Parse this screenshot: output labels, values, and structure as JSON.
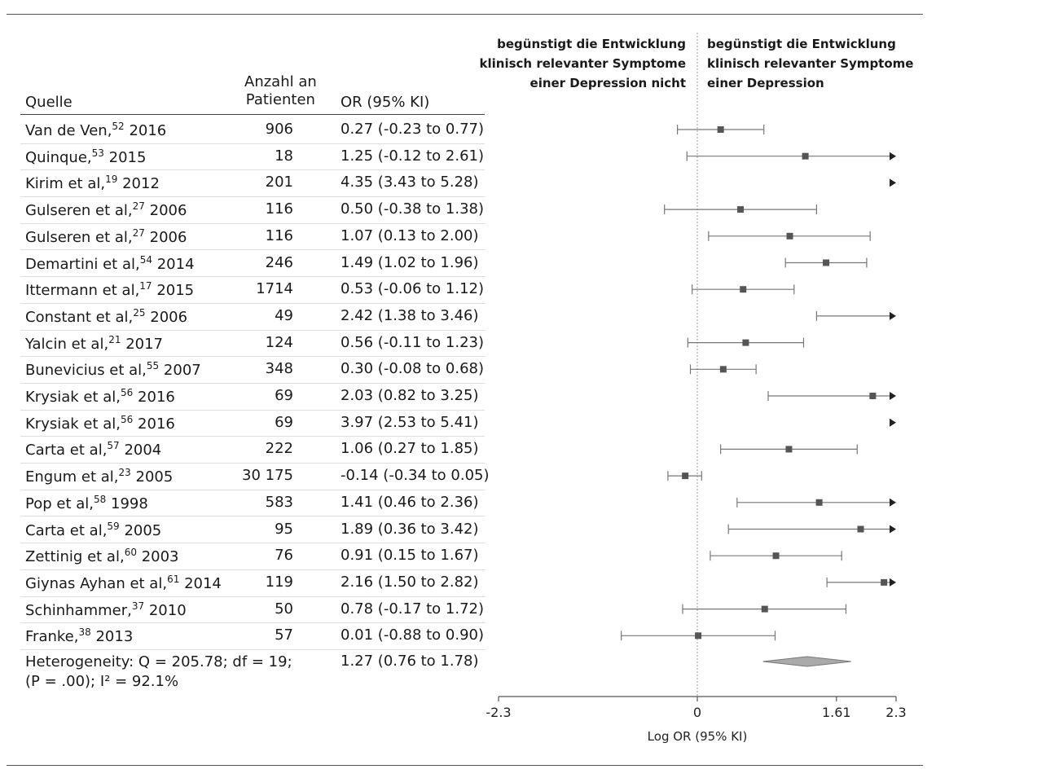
{
  "table_headers": {
    "source": "Quelle",
    "patients_line1": "Anzahl an",
    "patients_line2": "Patienten",
    "or": "OR (95% KI)"
  },
  "direction_labels": {
    "left_line1": "begünstigt die Entwicklung",
    "left_line2": "klinisch relevanter Symptome",
    "left_line3": "einer Depression nicht",
    "right_line1": "begünstigt die Entwicklung",
    "right_line2": "klinisch relevanter Symptome",
    "right_line3": "einer Depression"
  },
  "rows": [
    {
      "name": "Van de Ven,",
      "ref": "52",
      "year": "2016",
      "n": "906",
      "or_text": "0.27 (-0.23 to 0.77)"
    },
    {
      "name": "Quinque,",
      "ref": "53",
      "year": "2015",
      "n": "18",
      "or_text": "1.25 (-0.12 to 2.61)"
    },
    {
      "name": "Kirim et al,",
      "ref": "19",
      "year": "2012",
      "n": "201",
      "or_text": "4.35 (3.43 to 5.28)"
    },
    {
      "name": "Gulseren et al,",
      "ref": "27",
      "year": "2006",
      "n": "116",
      "or_text": "0.50 (-0.38 to 1.38)"
    },
    {
      "name": "Gulseren et al,",
      "ref": "27",
      "year": "2006",
      "n": "116",
      "or_text": "1.07 (0.13 to 2.00)"
    },
    {
      "name": "Demartini et al,",
      "ref": "54",
      "year": "2014",
      "n": "246",
      "or_text": "1.49 (1.02 to 1.96)"
    },
    {
      "name": "Ittermann et al,",
      "ref": "17",
      "year": "2015",
      "n": "1714",
      "or_text": "0.53 (-0.06 to 1.12)"
    },
    {
      "name": "Constant et al,",
      "ref": "25",
      "year": "2006",
      "n": "49",
      "or_text": "2.42 (1.38 to 3.46)"
    },
    {
      "name": "Yalcin et al,",
      "ref": "21",
      "year": "2017",
      "n": "124",
      "or_text": "0.56 (-0.11 to 1.23)"
    },
    {
      "name": "Bunevicius et al,",
      "ref": "55",
      "year": "2007",
      "n": "348",
      "or_text": "0.30 (-0.08 to 0.68)"
    },
    {
      "name": "Krysiak et al,",
      "ref": "56",
      "year": "2016",
      "n": "69",
      "or_text": "2.03 (0.82 to 3.25)"
    },
    {
      "name": "Krysiak et al,",
      "ref": "56",
      "year": "2016",
      "n": "69",
      "or_text": "3.97 (2.53 to 5.41)"
    },
    {
      "name": "Carta et al,",
      "ref": "57",
      "year": "2004",
      "n": "222",
      "or_text": "1.06 (0.27 to 1.85)"
    },
    {
      "name": "Engum et al,",
      "ref": "23",
      "year": "2005",
      "n": "30 175",
      "or_text": "-0.14 (-0.34 to 0.05)"
    },
    {
      "name": "Pop et al,",
      "ref": "58",
      "year": "1998",
      "n": "583",
      "or_text": "1.41 (0.46 to 2.36)"
    },
    {
      "name": "Carta et al,",
      "ref": "59",
      "year": "2005",
      "n": "95",
      "or_text": "1.89 (0.36 to 3.42)"
    },
    {
      "name": "Zettinig et al,",
      "ref": "60",
      "year": "2003",
      "n": "76",
      "or_text": "0.91 (0.15 to 1.67)"
    },
    {
      "name": "Giynas Ayhan et al,",
      "ref": "61",
      "year": "2014",
      "n": "119",
      "or_text": "2.16 (1.50 to 2.82)"
    },
    {
      "name": "Schinhammer,",
      "ref": "37",
      "year": "2010",
      "n": "50",
      "or_text": "0.78 (-0.17 to 1.72)"
    },
    {
      "name": "Franke,",
      "ref": "38",
      "year": "2013",
      "n": "57",
      "or_text": "0.01 (-0.88 to 0.90)"
    }
  ],
  "heterogeneity": {
    "line1": "Heterogeneity: Q = 205.78; df = 19;",
    "line2": "(P = .00); I² = 92.1%",
    "or_text": "1.27 (0.76 to 1.78)"
  },
  "chart_data": {
    "type": "forest",
    "xlabel": "Log OR (95% KI)",
    "xlim": [
      -2.3,
      2.3
    ],
    "xticks": [
      -2.3,
      0,
      1.61,
      2.3
    ],
    "xtick_labels": [
      "-2.3",
      "0",
      "1.61",
      "2.3"
    ],
    "estimates": [
      0.27,
      1.25,
      4.35,
      0.5,
      1.07,
      1.49,
      0.53,
      2.42,
      0.56,
      0.3,
      2.03,
      3.97,
      1.06,
      -0.14,
      1.41,
      1.89,
      0.91,
      2.16,
      0.78,
      0.01
    ],
    "lower": [
      -0.23,
      -0.12,
      3.43,
      -0.38,
      0.13,
      1.02,
      -0.06,
      1.38,
      -0.11,
      -0.08,
      0.82,
      2.53,
      0.27,
      -0.34,
      0.46,
      0.36,
      0.15,
      1.5,
      -0.17,
      -0.88
    ],
    "upper": [
      0.77,
      2.61,
      5.28,
      1.38,
      2.0,
      1.96,
      1.12,
      3.46,
      1.23,
      0.68,
      3.25,
      5.41,
      1.85,
      0.05,
      2.36,
      3.42,
      1.67,
      2.82,
      1.72,
      0.9
    ],
    "pooled": {
      "estimate": 1.27,
      "lower": 0.76,
      "upper": 1.78
    },
    "colors": {
      "marker": "#555555",
      "line": "#777777",
      "diamond": "#aaaaaa",
      "null_line": "#999999"
    }
  }
}
